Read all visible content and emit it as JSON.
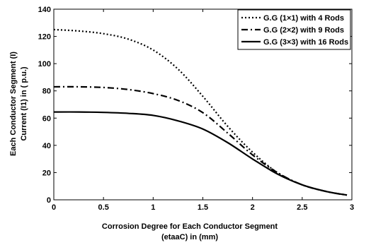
{
  "chart_data": {
    "type": "line",
    "xlabel_lines": [
      "Corrosion Degree  for Each Conductor Segment",
      "(etaaC) in (mm)"
    ],
    "ylabel_lines": [
      "Each Conductor Segment (I)",
      "Current  (I1)  in  ( p.u.)"
    ],
    "xlim": [
      0,
      3
    ],
    "ylim": [
      0,
      140
    ],
    "xticks": [
      0,
      0.5,
      1,
      1.5,
      2,
      2.5,
      3
    ],
    "yticks": [
      0,
      20,
      40,
      60,
      80,
      100,
      120,
      140
    ],
    "grid": false,
    "legend_position": "top-right",
    "series": [
      {
        "name": "G.G (1×1) with 4 Rods",
        "style": "dotted",
        "x": [
          0,
          0.25,
          0.5,
          0.75,
          1.0,
          1.25,
          1.5,
          1.75,
          2.0,
          2.25,
          2.5,
          2.75,
          2.95
        ],
        "y": [
          125,
          124,
          122,
          118,
          110,
          96,
          76,
          54,
          35,
          20,
          11,
          6,
          3.5
        ]
      },
      {
        "name": "G.G (2×2) with 9 Rods",
        "style": "dashdot",
        "x": [
          0,
          0.25,
          0.5,
          0.75,
          1.0,
          1.25,
          1.5,
          1.75,
          2.0,
          2.25,
          2.5,
          2.75,
          2.95
        ],
        "y": [
          83,
          83,
          82.5,
          81,
          78,
          73,
          64,
          49,
          33,
          20,
          11,
          6,
          3.5
        ]
      },
      {
        "name": "G.G (3×3) with 16 Rods",
        "style": "solid",
        "x": [
          0,
          0.25,
          0.5,
          0.75,
          1.0,
          1.25,
          1.5,
          1.75,
          2.0,
          2.25,
          2.5,
          2.75,
          2.95
        ],
        "y": [
          64.5,
          64.5,
          64.2,
          63.5,
          62,
          58,
          52,
          42,
          30,
          19,
          11,
          6,
          3.5
        ]
      }
    ]
  }
}
